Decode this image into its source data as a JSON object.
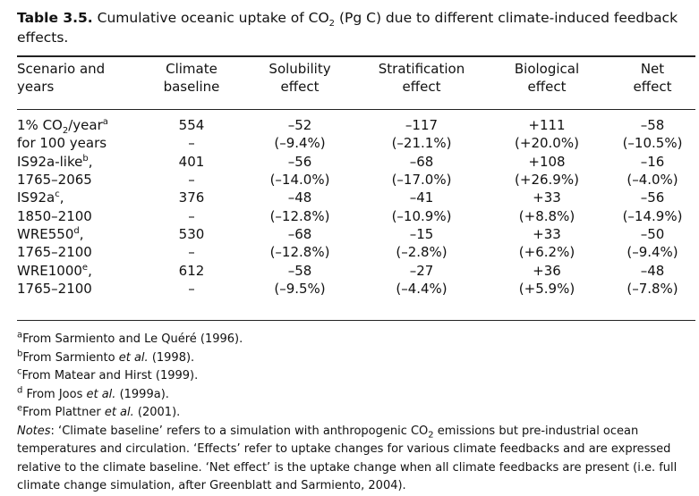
{
  "caption": {
    "number": "Table 3.5.",
    "text_a": "Cumulative oceanic uptake of CO",
    "sub": "2",
    "text_b": " (Pg C) due to different climate-induced feedback effects."
  },
  "columns": [
    {
      "line1": "Scenario and",
      "line2": "years"
    },
    {
      "line1": "Climate",
      "line2": "baseline"
    },
    {
      "line1": "Solubility",
      "line2": "effect"
    },
    {
      "line1": "Stratification",
      "line2": "effect"
    },
    {
      "line1": "Biological",
      "line2": "effect"
    },
    {
      "line1": "Net",
      "line2": "effect"
    }
  ],
  "rows": [
    {
      "scenario_a": "1% CO",
      "scenario_sub": "2",
      "scenario_b": "/year",
      "sup": "a",
      "years": "for 100 years",
      "baseline": "554",
      "baseline_pct": "–",
      "solubility": "–52",
      "solubility_pct": "(–9.4%)",
      "stratification": "–117",
      "stratification_pct": "(–21.1%)",
      "biological": "+111",
      "biological_pct": "(+20.0%)",
      "net": "–58",
      "net_pct": "(–10.5%)"
    },
    {
      "scenario_a": "IS92a-like",
      "scenario_sub": "",
      "scenario_b": "",
      "sup": "b",
      "suffix": ",",
      "years": "1765–2065",
      "baseline": "401",
      "baseline_pct": "–",
      "solubility": "–56",
      "solubility_pct": "(–14.0%)",
      "stratification": "–68",
      "stratification_pct": "(–17.0%)",
      "biological": "+108",
      "biological_pct": "(+26.9%)",
      "net": "–16",
      "net_pct": "(–4.0%)"
    },
    {
      "scenario_a": "IS92a",
      "scenario_sub": "",
      "scenario_b": "",
      "sup": "c",
      "suffix": ",",
      "years": "1850–2100",
      "baseline": "376",
      "baseline_pct": "–",
      "solubility": "–48",
      "solubility_pct": "(–12.8%)",
      "stratification": "–41",
      "stratification_pct": "(–10.9%)",
      "biological": "+33",
      "biological_pct": "(+8.8%)",
      "net": "–56",
      "net_pct": "(–14.9%)"
    },
    {
      "scenario_a": "WRE550",
      "scenario_sub": "",
      "scenario_b": "",
      "sup": "d",
      "suffix": ",",
      "years": "1765–2100",
      "baseline": "530",
      "baseline_pct": "–",
      "solubility": "–68",
      "solubility_pct": "(–12.8%)",
      "stratification": "–15",
      "stratification_pct": "(–2.8%)",
      "biological": "+33",
      "biological_pct": "(+6.2%)",
      "net": "–50",
      "net_pct": "(–9.4%)"
    },
    {
      "scenario_a": "WRE1000",
      "scenario_sub": "",
      "scenario_b": "",
      "sup": "e",
      "suffix": ",",
      "years": "1765–2100",
      "baseline": "612",
      "baseline_pct": "–",
      "solubility": "–58",
      "solubility_pct": "(–9.5%)",
      "stratification": "–27",
      "stratification_pct": "(–4.4%)",
      "biological": "+36",
      "biological_pct": "(+5.9%)",
      "net": "–48",
      "net_pct": "(–7.8%)"
    }
  ],
  "footnotes": {
    "a": {
      "mark": "a",
      "pre": "From Sarmiento and Le Quéré (1996).",
      "it": "",
      "post": ""
    },
    "b": {
      "mark": "b",
      "pre": "From Sarmiento ",
      "it": "et al.",
      "post": " (1998)."
    },
    "c": {
      "mark": "c",
      "pre": "From Matear and Hirst (1999).",
      "it": "",
      "post": ""
    },
    "d": {
      "mark": "d",
      "pre": " From Joos ",
      "it": "et al.",
      "post": " (1999a)."
    },
    "e": {
      "mark": "e",
      "pre": "From Plattner ",
      "it": "et al.",
      "post": " (2001)."
    }
  },
  "notes": {
    "label": "Notes",
    "part1": ": ‘Climate baseline’ refers to a simulation with anthropogenic CO",
    "sub": "2",
    "part2": " emissions but pre-industrial ocean temperatures and circulation. ‘Effects’ refer to uptake changes for various climate feedbacks and are expressed relative to the climate baseline. ‘Net effect’ is the uptake change when all climate feedbacks are present (i.e. full climate change simulation, after Greenblatt and Sarmiento, 2004)."
  }
}
